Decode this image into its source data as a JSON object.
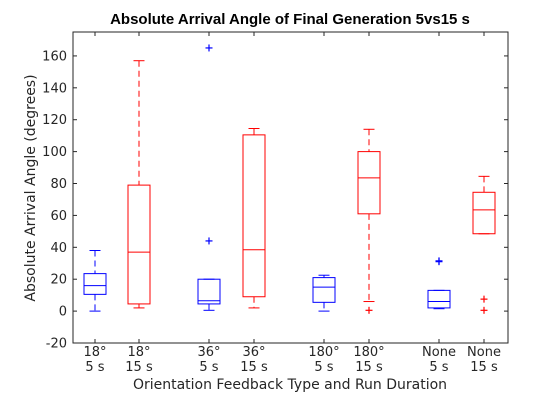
{
  "chart_data": {
    "type": "box",
    "title": "Absolute Arrival Angle of Final Generation 5vs15 s",
    "xlabel": "Orientation Feedback Type and Run Duration",
    "ylabel": "Absolute Arrival Angle (degrees)",
    "ylim": [
      -20,
      175
    ],
    "yticks": [
      -20,
      0,
      20,
      40,
      60,
      80,
      100,
      120,
      140,
      160
    ],
    "grid": false,
    "colors": {
      "5 s": "#0000ff",
      "15 s": "#ff0000"
    },
    "categories": [
      {
        "line1": "18°",
        "line2": "5 s",
        "color": "#0000ff",
        "whisker_low": 0,
        "q1": 10.5,
        "median": 16,
        "q3": 23.5,
        "whisker_high": 38,
        "outliers": []
      },
      {
        "line1": "18°",
        "line2": "15 s",
        "color": "#ff0000",
        "whisker_low": 2,
        "q1": 4.5,
        "median": 37,
        "q3": 79,
        "whisker_high": 157,
        "outliers": []
      },
      {
        "line1": "36°",
        "line2": "5 s",
        "color": "#0000ff",
        "whisker_low": 0.5,
        "q1": 4.5,
        "median": 6.5,
        "q3": 20,
        "whisker_high": 20,
        "outliers": [
          44,
          165
        ]
      },
      {
        "line1": "36°",
        "line2": "15 s",
        "color": "#ff0000",
        "whisker_low": 2,
        "q1": 9,
        "median": 38.5,
        "q3": 110.5,
        "whisker_high": 114.5,
        "outliers": []
      },
      {
        "line1": "180°",
        "line2": "5 s",
        "color": "#0000ff",
        "whisker_low": 0,
        "q1": 5.5,
        "median": 15,
        "q3": 21,
        "whisker_high": 22.5,
        "outliers": []
      },
      {
        "line1": "180°",
        "line2": "15 s",
        "color": "#ff0000",
        "whisker_low": 6,
        "q1": 61,
        "median": 83.5,
        "q3": 100,
        "whisker_high": 114,
        "outliers": [
          0.5
        ]
      },
      {
        "line1": "None",
        "line2": "5 s",
        "color": "#0000ff",
        "whisker_low": 1.5,
        "q1": 2,
        "median": 6,
        "q3": 13,
        "whisker_high": 13,
        "outliers": [
          31,
          31.5
        ]
      },
      {
        "line1": "None",
        "line2": "15 s",
        "color": "#ff0000",
        "whisker_low": 48.5,
        "q1": 48.5,
        "median": 63.5,
        "q3": 74.5,
        "whisker_high": 84.5,
        "outliers": [
          0.5,
          7.5
        ]
      }
    ]
  }
}
